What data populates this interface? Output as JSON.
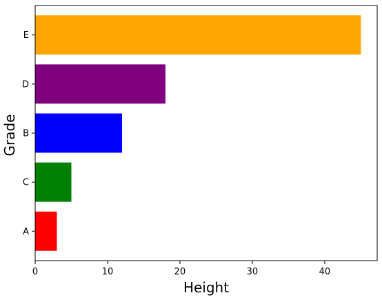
{
  "chart_data": {
    "type": "bar",
    "orientation": "horizontal",
    "title": "",
    "xlabel": "Height",
    "ylabel": "Grade",
    "categories": [
      "A",
      "C",
      "B",
      "D",
      "E"
    ],
    "values": [
      3,
      5,
      12,
      18,
      45
    ],
    "colors": [
      "#ff0000",
      "#008000",
      "#0000ff",
      "#800080",
      "#ffa500"
    ],
    "xlim": [
      0,
      47.25
    ],
    "xticks": [
      0,
      10,
      20,
      30,
      40
    ],
    "grid": false,
    "legend": "none"
  }
}
